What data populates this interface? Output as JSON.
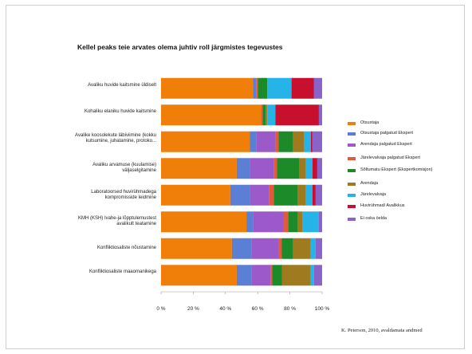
{
  "chart_data": {
    "type": "bar",
    "orientation": "horizontal",
    "stacked": true,
    "normalized": true,
    "title": "Kellel peaks teie arvates olema juhtiv roll järgmistes tegevustes",
    "categories": [
      "Avaliku huvide kaitsmine üldiselt",
      "Kohaliku elaniku huvide kaitsmine",
      "Avalike koosolekute läbiviimine (kokku kutsumine, juhatamine, protoko...",
      "Avaliku arvamuse (kuulamise) väljaselgitamine",
      "Laboratoorsed huvirühmadega kompromisside leidmine",
      "KMH (KSH) Ivahe-ja lõpptulemustest avalikult teatamine",
      "Konfliktiosaliste nõustamine",
      "Konfliktiosaliste maaomanikega"
    ],
    "series": [
      {
        "name": "Otsustaja",
        "color": "#f07f09",
        "values": [
          57,
          62,
          55,
          47,
          43,
          53,
          44,
          47
        ]
      },
      {
        "name": "Otsustaja palgatud Ekspert",
        "color": "#5b7fd4",
        "values": [
          2,
          0,
          4,
          8,
          12,
          4,
          12,
          9
        ]
      },
      {
        "name": "Arendaja palgatud Ekspert",
        "color": "#9b59c9",
        "values": [
          0,
          0,
          12,
          15,
          12,
          19,
          17,
          12
        ]
      },
      {
        "name": "Järelevalvaja palgatud Ekspert",
        "color": "#e05a3c",
        "values": [
          1,
          1,
          2,
          2,
          3,
          3,
          2,
          1
        ]
      },
      {
        "name": "Sõltumatu Ekspert (Ekspertkomisjon)",
        "color": "#1d8a2a",
        "values": [
          6,
          2,
          9,
          14,
          15,
          6,
          7,
          6
        ]
      },
      {
        "name": "Arendaja",
        "color": "#a07a1e",
        "values": [
          0,
          1,
          7,
          4,
          5,
          3,
          11,
          18
        ]
      },
      {
        "name": "Järelevalvaja",
        "color": "#26b4e8",
        "values": [
          15,
          5,
          4,
          4,
          4,
          10,
          3,
          2
        ]
      },
      {
        "name": "Huvirühmad/ Avalikkus",
        "color": "#c8102e",
        "values": [
          14,
          27,
          1,
          3,
          2,
          0,
          0,
          0
        ]
      },
      {
        "name": "Ei oska öelda",
        "color": "#8a63c8",
        "values": [
          5,
          2,
          6,
          3,
          4,
          2,
          4,
          5
        ]
      }
    ],
    "xaxis": {
      "ticks": [
        "0 %",
        "20 %",
        "40 %",
        "60 %",
        "80 %",
        "100 %"
      ],
      "range": [
        0,
        100
      ]
    },
    "legend_position": "right",
    "grid": false
  },
  "source_note": "K. Peterson, 2010, avaldamata andmed"
}
